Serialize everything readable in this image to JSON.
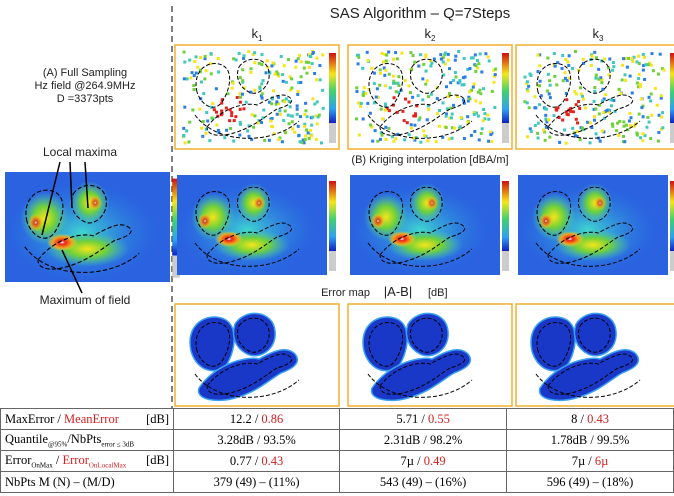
{
  "header": {
    "title": "SAS Algorithm – Q=7Steps",
    "columns": [
      {
        "text": "k",
        "sub": "1"
      },
      {
        "text": "k",
        "sub": "2"
      },
      {
        "text": "k",
        "sub": "3"
      }
    ]
  },
  "left": {
    "caption": [
      "(A) Full Sampling",
      "Hz field @264.9MHz",
      "D =3373pts"
    ],
    "local_maxima": "Local maxima",
    "maximum": "Maximum of field"
  },
  "rows": {
    "kriging": "(B) Kriging interpolation [dBA/m]",
    "error_map": {
      "label": "Error map",
      "formula": "|A-B|",
      "unit": "[dB]"
    }
  },
  "table": {
    "rows": [
      {
        "label": [
          {
            "text": "MaxError"
          },
          {
            "text": " / "
          },
          {
            "text": "MeanError",
            "red": true
          }
        ],
        "unit": "[dB]",
        "cells": [
          [
            {
              "text": "12.2"
            },
            {
              "text": " / "
            },
            {
              "text": "0.86",
              "red": true
            }
          ],
          [
            {
              "text": "5.71"
            },
            {
              "text": " / "
            },
            {
              "text": "0.55",
              "red": true
            }
          ],
          [
            {
              "text": "8"
            },
            {
              "text": " / "
            },
            {
              "text": "0.43",
              "red": true
            }
          ]
        ]
      },
      {
        "label": [
          {
            "text": "Quantile"
          },
          {
            "text": "@95%",
            "sub": true
          },
          {
            "text": "/NbPts"
          },
          {
            "text": "error ≤ 3dB",
            "sub": true
          }
        ],
        "cells": [
          [
            {
              "text": "3.28dB / 93.5%"
            }
          ],
          [
            {
              "text": "2.31dB / 98.2%"
            }
          ],
          [
            {
              "text": "1.78dB / 99.5%"
            }
          ]
        ]
      },
      {
        "label": [
          {
            "text": "Error"
          },
          {
            "text": "OnMax",
            "sub": true
          },
          {
            "text": " / "
          },
          {
            "text": "Error",
            "red": true
          },
          {
            "text": "OnLocalMax",
            "sub": true,
            "red": true
          }
        ],
        "unit": "[dB]",
        "cells": [
          [
            {
              "text": "0.77"
            },
            {
              "text": " / "
            },
            {
              "text": "0.43",
              "red": true
            }
          ],
          [
            {
              "text": "7µ"
            },
            {
              "text": " / "
            },
            {
              "text": "0.49",
              "red": true
            }
          ],
          [
            {
              "text": "7µ"
            },
            {
              "text": " / "
            },
            {
              "text": "6µ",
              "red": true
            }
          ]
        ]
      },
      {
        "label": [
          {
            "text": "NbPts M (N) – (M/D)"
          }
        ],
        "cells": [
          [
            {
              "text": "379 (49) – (11%)"
            }
          ],
          [
            {
              "text": "543 (49) – (16%)"
            }
          ],
          [
            {
              "text": "596 (49) – (18%)"
            }
          ]
        ]
      }
    ]
  }
}
